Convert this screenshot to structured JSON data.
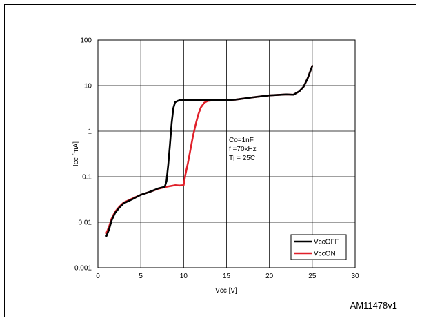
{
  "figure_id": "AM11478v1",
  "chart_data": {
    "type": "line",
    "xlabel": "Vcc [V]",
    "ylabel": "Icc [mA]",
    "xlim": [
      0,
      30
    ],
    "ylim": [
      0.001,
      100
    ],
    "y_scale": "log",
    "grid": true,
    "x_ticks": [
      "0",
      "5",
      "10",
      "15",
      "20",
      "25",
      "30"
    ],
    "y_ticks": [
      "0.001",
      "0.01",
      "0.1",
      "1",
      "10",
      "100"
    ],
    "annotations": [
      "Co=1nF",
      "f =70kHz",
      "Tj = 25̊C"
    ],
    "legend_position": "bottom-right",
    "series": [
      {
        "name": "VccOFF",
        "color": "#000000",
        "x": [
          1,
          1.3,
          1.6,
          2,
          2.5,
          3,
          4,
          5,
          6,
          7,
          7.8,
          8.0,
          8.2,
          8.4,
          8.6,
          8.8,
          9.0,
          9.3,
          9.6,
          10,
          11,
          12,
          13,
          14,
          15,
          16,
          18,
          20,
          22,
          22.8,
          23.5,
          24,
          24.5,
          25
        ],
        "y": [
          0.005,
          0.007,
          0.011,
          0.016,
          0.021,
          0.026,
          0.032,
          0.04,
          0.046,
          0.055,
          0.06,
          0.08,
          0.18,
          0.5,
          1.5,
          3.2,
          4.3,
          4.6,
          4.8,
          4.8,
          4.8,
          4.8,
          4.8,
          4.8,
          4.8,
          4.9,
          5.5,
          6.1,
          6.4,
          6.3,
          7.5,
          9.5,
          15,
          27
        ]
      },
      {
        "name": "VccON",
        "color": "#e0202a",
        "x": [
          1,
          1.3,
          1.6,
          2,
          2.5,
          3,
          4,
          5,
          6,
          7,
          8,
          9,
          9.5,
          10,
          10.2,
          10.5,
          10.8,
          11.1,
          11.4,
          11.7,
          12,
          12.4,
          12.8,
          13.3,
          14,
          15,
          16,
          18,
          20,
          22,
          22.8,
          23.5,
          24,
          24.5,
          25
        ],
        "y": [
          0.0058,
          0.008,
          0.012,
          0.017,
          0.022,
          0.027,
          0.033,
          0.04,
          0.046,
          0.054,
          0.06,
          0.065,
          0.064,
          0.065,
          0.11,
          0.2,
          0.4,
          0.8,
          1.4,
          2.3,
          3.3,
          4.2,
          4.6,
          4.7,
          4.8,
          4.8,
          4.9,
          5.5,
          6.1,
          6.4,
          6.3,
          7.5,
          9.5,
          15,
          27
        ]
      }
    ]
  }
}
